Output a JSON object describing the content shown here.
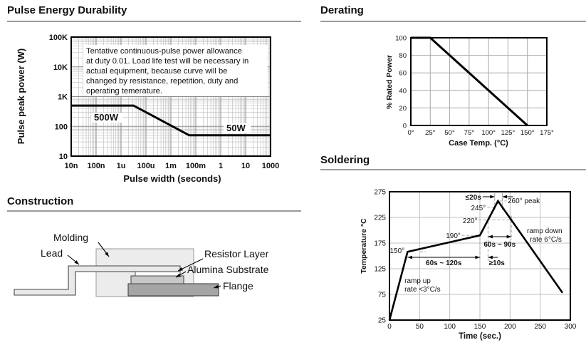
{
  "sections": {
    "pulse": {
      "title": "Pulse Energy Durability"
    },
    "derating": {
      "title": "Derating"
    },
    "construction": {
      "title": "Construction"
    },
    "soldering": {
      "title": "Soldering"
    }
  },
  "construction": {
    "labels": {
      "molding": "Molding",
      "lead": "Lead",
      "resistor_layer": "Resistor Layer",
      "alumina_substrate": "Alumina Substrate",
      "flange": "Flange"
    },
    "colors": {
      "molding": "#ececec",
      "lead": "#e9e9e9",
      "resistor_layer": "#fbfbfb",
      "alumina_substrate": "#c8c8c8",
      "flange": "#a5a5a5",
      "outline": "#444444"
    }
  },
  "chart_data": [
    {
      "id": "pulse-energy-durability",
      "type": "line",
      "title": "Pulse Energy Durability",
      "xlabel": "Pulse width (seconds)",
      "ylabel": "Pulse peak power (W)",
      "x_scale": "log",
      "y_scale": "log",
      "x_tick_labels": [
        "10n",
        "100n",
        "1u",
        "100u",
        "1m",
        "100m",
        "1",
        "10",
        "1000"
      ],
      "x_tick_values": [
        1e-08,
        1e-07,
        1e-06,
        0.0001,
        0.001,
        0.1,
        1,
        10,
        1000
      ],
      "y_tick_labels": [
        "10",
        "100",
        "1K",
        "10K",
        "100K"
      ],
      "y_tick_values": [
        10,
        100,
        1000,
        10000,
        100000
      ],
      "xlim": [
        1e-08,
        1000
      ],
      "ylim": [
        10,
        100000
      ],
      "grid": "log minor grid, both axes",
      "series": [
        {
          "name": "continuous-pulse power allowance",
          "points": [
            [
              1e-08,
              500
            ],
            [
              1e-05,
              500
            ],
            [
              0.03,
              50
            ],
            [
              1000,
              50
            ]
          ],
          "segment_labels": [
            "500W",
            "50W"
          ]
        }
      ],
      "note_lines": [
        "Tentative continuous-pulse power allowance",
        "at duty 0.01. Load life test will be necessary in",
        "actual equipment, because curve will be",
        "changed by resistance, repetition, duty and",
        "operating temerature."
      ]
    },
    {
      "id": "derating",
      "type": "line",
      "title": "Derating",
      "xlabel": "Case Temp. (°C)",
      "ylabel": "% Rated Power",
      "x_tick_labels": [
        "0°",
        "25°",
        "50°",
        "75°",
        "100°",
        "125°",
        "150°",
        "175°"
      ],
      "x_tick_values": [
        0,
        25,
        50,
        75,
        100,
        125,
        150,
        175
      ],
      "y_ticks": [
        0,
        20,
        40,
        60,
        80,
        100
      ],
      "xlim": [
        0,
        175
      ],
      "ylim": [
        0,
        100
      ],
      "grid": "on",
      "points": [
        [
          0,
          100
        ],
        [
          25,
          100
        ],
        [
          150,
          0
        ]
      ]
    },
    {
      "id": "soldering",
      "type": "line",
      "title": "Soldering",
      "xlabel": "Time (sec.)",
      "ylabel": "Temperature °C",
      "x_ticks": [
        0,
        50,
        100,
        150,
        200,
        250,
        300
      ],
      "y_ticks": [
        25,
        75,
        125,
        175,
        225,
        275
      ],
      "xlim": [
        0,
        300
      ],
      "ylim": [
        25,
        275
      ],
      "grid": "on",
      "points": [
        [
          0,
          25
        ],
        [
          30,
          158
        ],
        [
          150,
          190
        ],
        [
          180,
          257
        ],
        [
          287,
          78
        ]
      ],
      "labels": {
        "le20s": "≤20s",
        "t245": "245°",
        "peak": "260° peak",
        "t220": "220°",
        "t190": "190°",
        "t150": "150°",
        "preheat_time": "60s ~ 120s",
        "ge10s": "≥10s",
        "above220_time": "60s ~ 90s",
        "ramp_up_1": "ramp up",
        "ramp_up_2": "rate <3°C/s",
        "ramp_down_1": "ramp down",
        "ramp_down_2": "rate 6°C/s"
      }
    }
  ]
}
